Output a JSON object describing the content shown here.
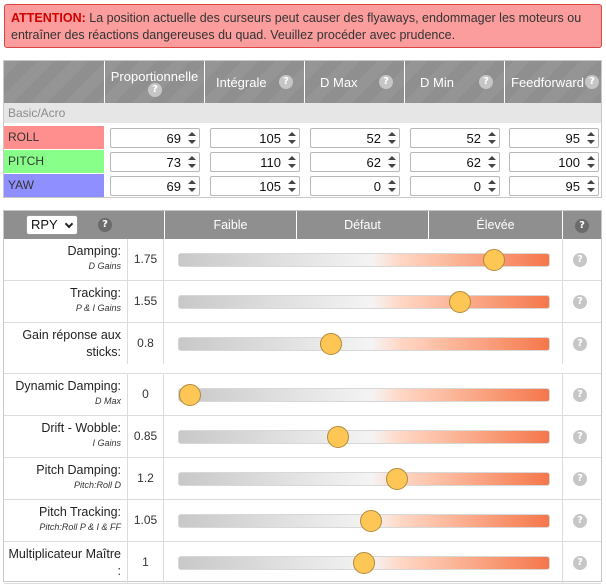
{
  "warning": {
    "prefix": "ATTENTION:",
    "text": " La position actuelle des curseurs peut causer des flyaways, endommager les moteurs ou entraîner des réactions dangereuses du quad. Veuillez procéder avec prudence."
  },
  "pid": {
    "columns": [
      {
        "label": "Proportionnelle"
      },
      {
        "label": "Intégrale"
      },
      {
        "label": "D Max"
      },
      {
        "label": "D Min"
      },
      {
        "label": "Feedforward"
      }
    ],
    "subheader": "Basic/Acro",
    "rows": [
      {
        "axis": "ROLL",
        "color": "#ff8f8f",
        "values": [
          "69",
          "105",
          "52",
          "52",
          "95"
        ]
      },
      {
        "axis": "PITCH",
        "color": "#88ff88",
        "values": [
          "73",
          "110",
          "62",
          "62",
          "100"
        ]
      },
      {
        "axis": "YAW",
        "color": "#8f8fff",
        "values": [
          "69",
          "105",
          "0",
          "0",
          "95"
        ]
      }
    ]
  },
  "sliders": {
    "mode": "RPY",
    "headers": {
      "low": "Faible",
      "default": "Défaut",
      "high": "Élevée"
    },
    "rows": [
      {
        "name": "Damping:",
        "sub": "D Gains",
        "value": "1.75",
        "pos": 0.85
      },
      {
        "name": "Tracking:",
        "sub": "P & I Gains",
        "value": "1.55",
        "pos": 0.76
      },
      {
        "name": "Gain réponse aux sticks:",
        "sub": "",
        "value": "0.8",
        "pos": 0.41
      },
      {
        "name": "Dynamic Damping:",
        "sub": "D Max",
        "value": "0",
        "pos": 0.03
      },
      {
        "name": "Drift - Wobble:",
        "sub": "I Gains",
        "value": "0.85",
        "pos": 0.43
      },
      {
        "name": "Pitch Damping:",
        "sub": "Pitch:Roll D",
        "value": "1.2",
        "pos": 0.59
      },
      {
        "name": "Pitch Tracking:",
        "sub": "Pitch:Roll P & I & FF",
        "value": "1.05",
        "pos": 0.52
      },
      {
        "name": "Multiplicateur Maître :",
        "sub": "",
        "value": "1",
        "pos": 0.5
      }
    ]
  }
}
